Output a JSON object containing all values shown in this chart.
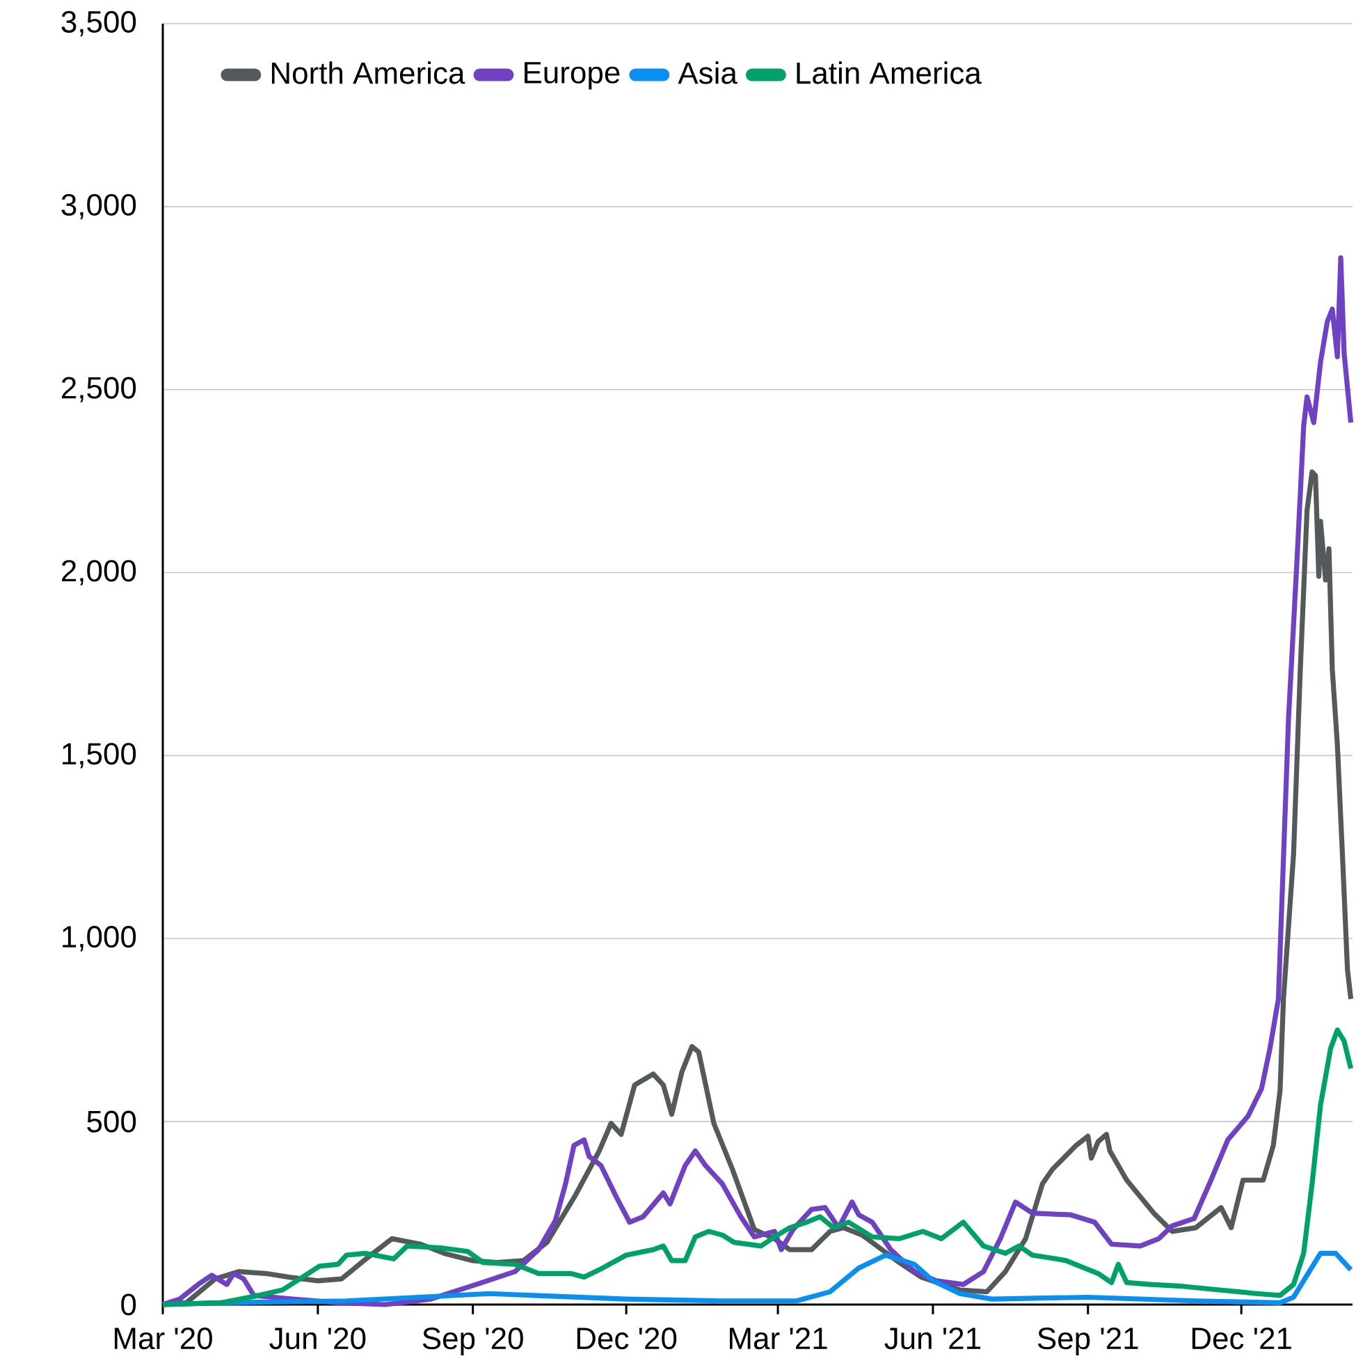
{
  "chart_data": {
    "type": "line",
    "xlim": [
      "2020-03-01",
      "2022-02-05"
    ],
    "xticks": [
      {
        "value": "2020-03-01",
        "label": "Mar '20"
      },
      {
        "value": "2020-06-01",
        "label": "Jun '20"
      },
      {
        "value": "2020-09-01",
        "label": "Sep '20"
      },
      {
        "value": "2020-12-01",
        "label": "Dec '20"
      },
      {
        "value": "2021-03-01",
        "label": "Mar '21"
      },
      {
        "value": "2021-06-01",
        "label": "Jun '21"
      },
      {
        "value": "2021-09-01",
        "label": "Sep '21"
      },
      {
        "value": "2021-12-01",
        "label": "Dec '21"
      }
    ],
    "ylim": [
      0,
      3500
    ],
    "yticks": [
      0,
      500,
      {
        "value": 1000,
        "label": "1,000"
      },
      {
        "value": 1500,
        "label": "1,500"
      },
      {
        "value": 2000,
        "label": "2,000"
      },
      {
        "value": 2500,
        "label": "2,500"
      },
      {
        "value": 3000,
        "label": "3,000"
      },
      {
        "value": 3500,
        "label": "3,500"
      }
    ],
    "grid": "y",
    "legend": "top left",
    "series": [
      {
        "name": "North America",
        "color": "#54595c",
        "x": [
          "2020-03-01",
          "2020-03-15",
          "2020-04-01",
          "2020-04-15",
          "2020-05-01",
          "2020-05-15",
          "2020-06-01",
          "2020-06-15",
          "2020-07-01",
          "2020-07-15",
          "2020-08-01",
          "2020-08-15",
          "2020-09-01",
          "2020-09-15",
          "2020-10-01",
          "2020-10-15",
          "2020-11-01",
          "2020-11-15",
          "2020-11-22",
          "2020-11-28",
          "2020-12-06",
          "2020-12-17",
          "2020-12-23",
          "2020-12-28",
          "2021-01-03",
          "2021-01-09",
          "2021-01-13",
          "2021-01-22",
          "2021-02-02",
          "2021-02-15",
          "2021-02-27",
          "2021-03-08",
          "2021-03-21",
          "2021-04-01",
          "2021-04-09",
          "2021-04-20",
          "2021-05-12",
          "2021-05-25",
          "2021-06-17",
          "2021-07-03",
          "2021-07-14",
          "2021-07-26",
          "2021-08-05",
          "2021-08-11",
          "2021-08-25",
          "2021-09-01",
          "2021-09-03",
          "2021-09-07",
          "2021-09-12",
          "2021-09-14",
          "2021-09-24",
          "2021-10-10",
          "2021-10-21",
          "2021-11-04",
          "2021-11-19",
          "2021-11-25",
          "2021-12-02",
          "2021-12-14",
          "2021-12-20",
          "2021-12-24",
          "2021-12-26",
          "2022-01-01",
          "2022-01-05",
          "2022-01-09",
          "2022-01-12",
          "2022-01-14",
          "2022-01-16",
          "2022-01-17",
          "2022-01-20",
          "2022-01-22",
          "2022-01-24",
          "2022-01-27",
          "2022-01-30",
          "2022-02-02",
          "2022-02-04"
        ],
        "values": [
          0,
          5,
          70,
          90,
          85,
          75,
          65,
          70,
          130,
          180,
          165,
          140,
          120,
          115,
          120,
          170,
          300,
          420,
          495,
          465,
          600,
          630,
          600,
          520,
          635,
          705,
          690,
          495,
          370,
          205,
          180,
          150,
          150,
          200,
          210,
          190,
          115,
          75,
          40,
          35,
          90,
          180,
          330,
          370,
          435,
          460,
          400,
          445,
          465,
          420,
          340,
          250,
          200,
          210,
          265,
          210,
          340,
          340,
          435,
          585,
          835,
          1230,
          1735,
          2170,
          2275,
          2265,
          1990,
          2140,
          1980,
          2065,
          1735,
          1530,
          1230,
          915,
          835
        ]
      },
      {
        "name": "Europe",
        "color": "#6f42c1",
        "x": [
          "2020-03-01",
          "2020-03-11",
          "2020-03-22",
          "2020-03-30",
          "2020-04-08",
          "2020-04-12",
          "2020-04-18",
          "2020-04-24",
          "2020-05-17",
          "2020-06-13",
          "2020-07-11",
          "2020-08-07",
          "2020-09-03",
          "2020-09-26",
          "2020-10-10",
          "2020-10-20",
          "2020-10-26",
          "2020-10-31",
          "2020-11-06",
          "2020-11-09",
          "2020-11-16",
          "2020-11-25",
          "2020-12-03",
          "2020-12-11",
          "2020-12-23",
          "2020-12-27",
          "2021-01-05",
          "2021-01-11",
          "2021-01-17",
          "2021-01-27",
          "2021-02-07",
          "2021-02-15",
          "2021-02-27",
          "2021-03-03",
          "2021-03-10",
          "2021-03-21",
          "2021-03-29",
          "2021-04-06",
          "2021-04-14",
          "2021-04-18",
          "2021-04-26",
          "2021-05-07",
          "2021-05-21",
          "2021-06-03",
          "2021-06-19",
          "2021-07-01",
          "2021-07-11",
          "2021-07-20",
          "2021-07-30",
          "2021-08-22",
          "2021-09-05",
          "2021-09-15",
          "2021-10-02",
          "2021-10-13",
          "2021-10-21",
          "2021-11-03",
          "2021-11-13",
          "2021-11-23",
          "2021-12-05",
          "2021-12-13",
          "2021-12-18",
          "2021-12-23",
          "2021-12-29",
          "2022-01-03",
          "2022-01-07",
          "2022-01-09",
          "2022-01-13",
          "2022-01-17",
          "2022-01-21",
          "2022-01-24",
          "2022-01-27",
          "2022-01-29",
          "2022-01-31",
          "2022-02-04"
        ],
        "values": [
          0,
          15,
          55,
          80,
          55,
          85,
          70,
          25,
          15,
          5,
          0,
          15,
          55,
          90,
          150,
          230,
          330,
          435,
          450,
          405,
          380,
          295,
          225,
          240,
          305,
          275,
          380,
          420,
          380,
          330,
          240,
          185,
          200,
          150,
          205,
          260,
          265,
          210,
          280,
          245,
          225,
          150,
          90,
          65,
          55,
          90,
          180,
          280,
          250,
          245,
          225,
          165,
          160,
          180,
          215,
          235,
          340,
          450,
          515,
          590,
          700,
          835,
          1600,
          2030,
          2400,
          2480,
          2410,
          2575,
          2685,
          2720,
          2590,
          2860,
          2600,
          2410
        ]
      },
      {
        "name": "Asia",
        "color": "#0a8ff0",
        "x": [
          "2020-03-01",
          "2020-04-05",
          "2020-06-18",
          "2020-07-31",
          "2020-09-11",
          "2020-10-07",
          "2020-12-01",
          "2021-01-26",
          "2021-03-12",
          "2021-04-01",
          "2021-04-18",
          "2021-05-04",
          "2021-05-21",
          "2021-06-01",
          "2021-06-17",
          "2021-07-06",
          "2021-09-01",
          "2021-11-04",
          "2021-12-24",
          "2022-01-01",
          "2022-01-09",
          "2022-01-17",
          "2022-01-26",
          "2022-02-04"
        ],
        "values": [
          0,
          5,
          10,
          20,
          30,
          25,
          15,
          10,
          10,
          35,
          100,
          135,
          110,
          65,
          30,
          15,
          20,
          10,
          5,
          20,
          80,
          140,
          140,
          95
        ]
      },
      {
        "name": "Latin America",
        "color": "#00a06b",
        "x": [
          "2020-03-01",
          "2020-04-05",
          "2020-04-27",
          "2020-05-11",
          "2020-05-23",
          "2020-06-02",
          "2020-06-13",
          "2020-06-18",
          "2020-06-29",
          "2020-07-16",
          "2020-07-24",
          "2020-08-13",
          "2020-08-29",
          "2020-09-07",
          "2020-09-26",
          "2020-10-10",
          "2020-10-29",
          "2020-11-06",
          "2020-11-15",
          "2020-12-01",
          "2020-12-17",
          "2020-12-23",
          "2020-12-28",
          "2021-01-05",
          "2021-01-11",
          "2021-01-19",
          "2021-01-27",
          "2021-02-03",
          "2021-02-19",
          "2021-02-27",
          "2021-03-08",
          "2021-03-18",
          "2021-03-26",
          "2021-04-03",
          "2021-04-12",
          "2021-04-26",
          "2021-05-12",
          "2021-05-26",
          "2021-06-06",
          "2021-06-19",
          "2021-07-01",
          "2021-07-14",
          "2021-07-22",
          "2021-07-30",
          "2021-08-13",
          "2021-08-19",
          "2021-09-07",
          "2021-09-15",
          "2021-09-19",
          "2021-09-24",
          "2021-10-08",
          "2021-10-27",
          "2021-11-18",
          "2021-12-10",
          "2021-12-24",
          "2022-01-01",
          "2022-01-07",
          "2022-01-12",
          "2022-01-17",
          "2022-01-23",
          "2022-01-27",
          "2022-01-31",
          "2022-02-04"
        ],
        "values": [
          0,
          5,
          25,
          40,
          75,
          105,
          110,
          135,
          140,
          125,
          160,
          155,
          145,
          115,
          110,
          85,
          85,
          75,
          95,
          135,
          150,
          160,
          120,
          120,
          185,
          200,
          190,
          170,
          160,
          185,
          210,
          225,
          240,
          210,
          225,
          185,
          180,
          200,
          180,
          225,
          160,
          140,
          160,
          135,
          125,
          120,
          85,
          60,
          110,
          60,
          55,
          50,
          40,
          30,
          25,
          55,
          140,
          330,
          545,
          700,
          750,
          720,
          645
        ]
      }
    ]
  }
}
